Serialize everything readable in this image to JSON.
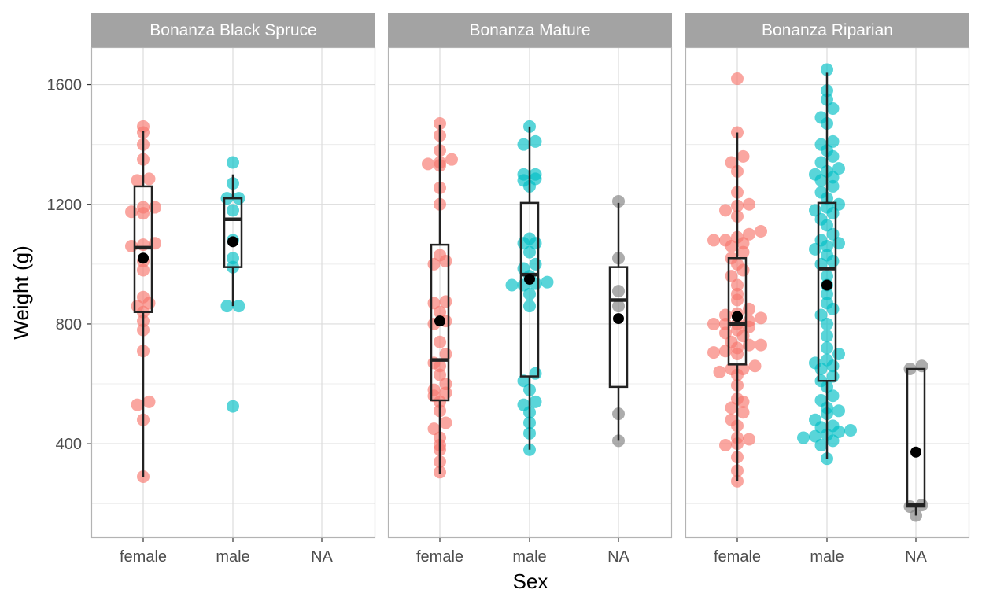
{
  "chart_data": {
    "type": "boxplot-dotplot",
    "xlabel": "Sex",
    "ylabel": "Weight (g)",
    "ylim": [
      85,
      1725
    ],
    "yticks": [
      400,
      800,
      1200,
      1600
    ],
    "categories": [
      "female",
      "male",
      "NA"
    ],
    "colors": {
      "female": "#F8766D",
      "male": "#00BFC4",
      "NA": "#7F7F7F"
    },
    "strip_color": "#A3A3A3",
    "grid": true,
    "facets": [
      {
        "label": "Bonanza Black Spruce",
        "groups": [
          {
            "sex": "female",
            "box": {
              "min": 290,
              "q1": 840,
              "median": 1055,
              "q3": 1260,
              "max": 1445
            },
            "mean": 1020,
            "points": [
              290,
              480,
              530,
              540,
              710,
              780,
              810,
              840,
              860,
              870,
              890,
              980,
              1010,
              1060,
              1065,
              1070,
              1170,
              1175,
              1190,
              1190,
              1280,
              1285,
              1350,
              1400,
              1440,
              1460
            ]
          },
          {
            "sex": "male",
            "box": {
              "min": 860,
              "q1": 990,
              "median": 1150,
              "q3": 1220,
              "max": 1300
            },
            "mean": 1075,
            "points": [
              525,
              860,
              860,
              990,
              1020,
              1080,
              1180,
              1220,
              1220,
              1270,
              1340
            ]
          }
        ]
      },
      {
        "label": "Bonanza Mature",
        "groups": [
          {
            "sex": "female",
            "box": {
              "min": 300,
              "q1": 545,
              "median": 680,
              "q3": 1065,
              "max": 1465
            },
            "mean": 810,
            "points": [
              305,
              340,
              380,
              395,
              420,
              450,
              470,
              510,
              540,
              560,
              570,
              580,
              600,
              630,
              660,
              670,
              700,
              740,
              800,
              810,
              840,
              870,
              875,
              1000,
              1010,
              1030,
              1200,
              1255,
              1330,
              1335,
              1340,
              1350,
              1380,
              1430,
              1470
            ]
          },
          {
            "sex": "male",
            "box": {
              "min": 380,
              "q1": 625,
              "median": 965,
              "q3": 1205,
              "max": 1460
            },
            "mean": 950,
            "points": [
              380,
              435,
              470,
              505,
              530,
              540,
              580,
              610,
              635,
              860,
              900,
              930,
              930,
              935,
              940,
              960,
              985,
              1000,
              1040,
              1070,
              1070,
              1085,
              1260,
              1280,
              1285,
              1300,
              1300,
              1400,
              1410,
              1460
            ]
          },
          {
            "sex": "NA",
            "box": {
              "min": 410,
              "q1": 590,
              "median": 880,
              "q3": 990,
              "max": 1205
            },
            "mean": 818,
            "points": [
              410,
              500,
              860,
              910,
              1020,
              1210
            ]
          }
        ]
      },
      {
        "label": "Bonanza Riparian",
        "groups": [
          {
            "sex": "female",
            "box": {
              "min": 275,
              "q1": 665,
              "median": 800,
              "q3": 1020,
              "max": 1440
            },
            "mean": 825,
            "points": [
              275,
              310,
              355,
              395,
              400,
              415,
              420,
              460,
              480,
              505,
              520,
              540,
              550,
              595,
              630,
              640,
              650,
              650,
              660,
              700,
              705,
              710,
              720,
              730,
              730,
              740,
              760,
              770,
              780,
              790,
              800,
              800,
              800,
              810,
              820,
              830,
              835,
              850,
              880,
              900,
              930,
              960,
              980,
              1000,
              1020,
              1040,
              1060,
              1070,
              1080,
              1080,
              1090,
              1100,
              1110,
              1160,
              1180,
              1195,
              1200,
              1240,
              1310,
              1340,
              1360,
              1440,
              1620
            ]
          },
          {
            "sex": "male",
            "box": {
              "min": 350,
              "q1": 610,
              "median": 985,
              "q3": 1205,
              "max": 1640
            },
            "mean": 930,
            "points": [
              350,
              395,
              410,
              420,
              425,
              430,
              440,
              445,
              455,
              460,
              480,
              500,
              510,
              520,
              545,
              560,
              590,
              610,
              625,
              650,
              660,
              670,
              680,
              700,
              720,
              760,
              800,
              830,
              850,
              870,
              900,
              930,
              960,
              1000,
              1010,
              1030,
              1050,
              1060,
              1070,
              1080,
              1100,
              1130,
              1150,
              1170,
              1180,
              1190,
              1200,
              1220,
              1240,
              1260,
              1280,
              1290,
              1300,
              1310,
              1320,
              1340,
              1360,
              1380,
              1400,
              1410,
              1470,
              1490,
              1520,
              1550,
              1580,
              1650
            ]
          },
          {
            "sex": "NA",
            "box": {
              "min": 160,
              "q1": 190,
              "median": 195,
              "q3": 650,
              "max": 650
            },
            "mean": 372,
            "points": [
              160,
              190,
              195,
              650,
              660
            ]
          }
        ]
      }
    ]
  }
}
